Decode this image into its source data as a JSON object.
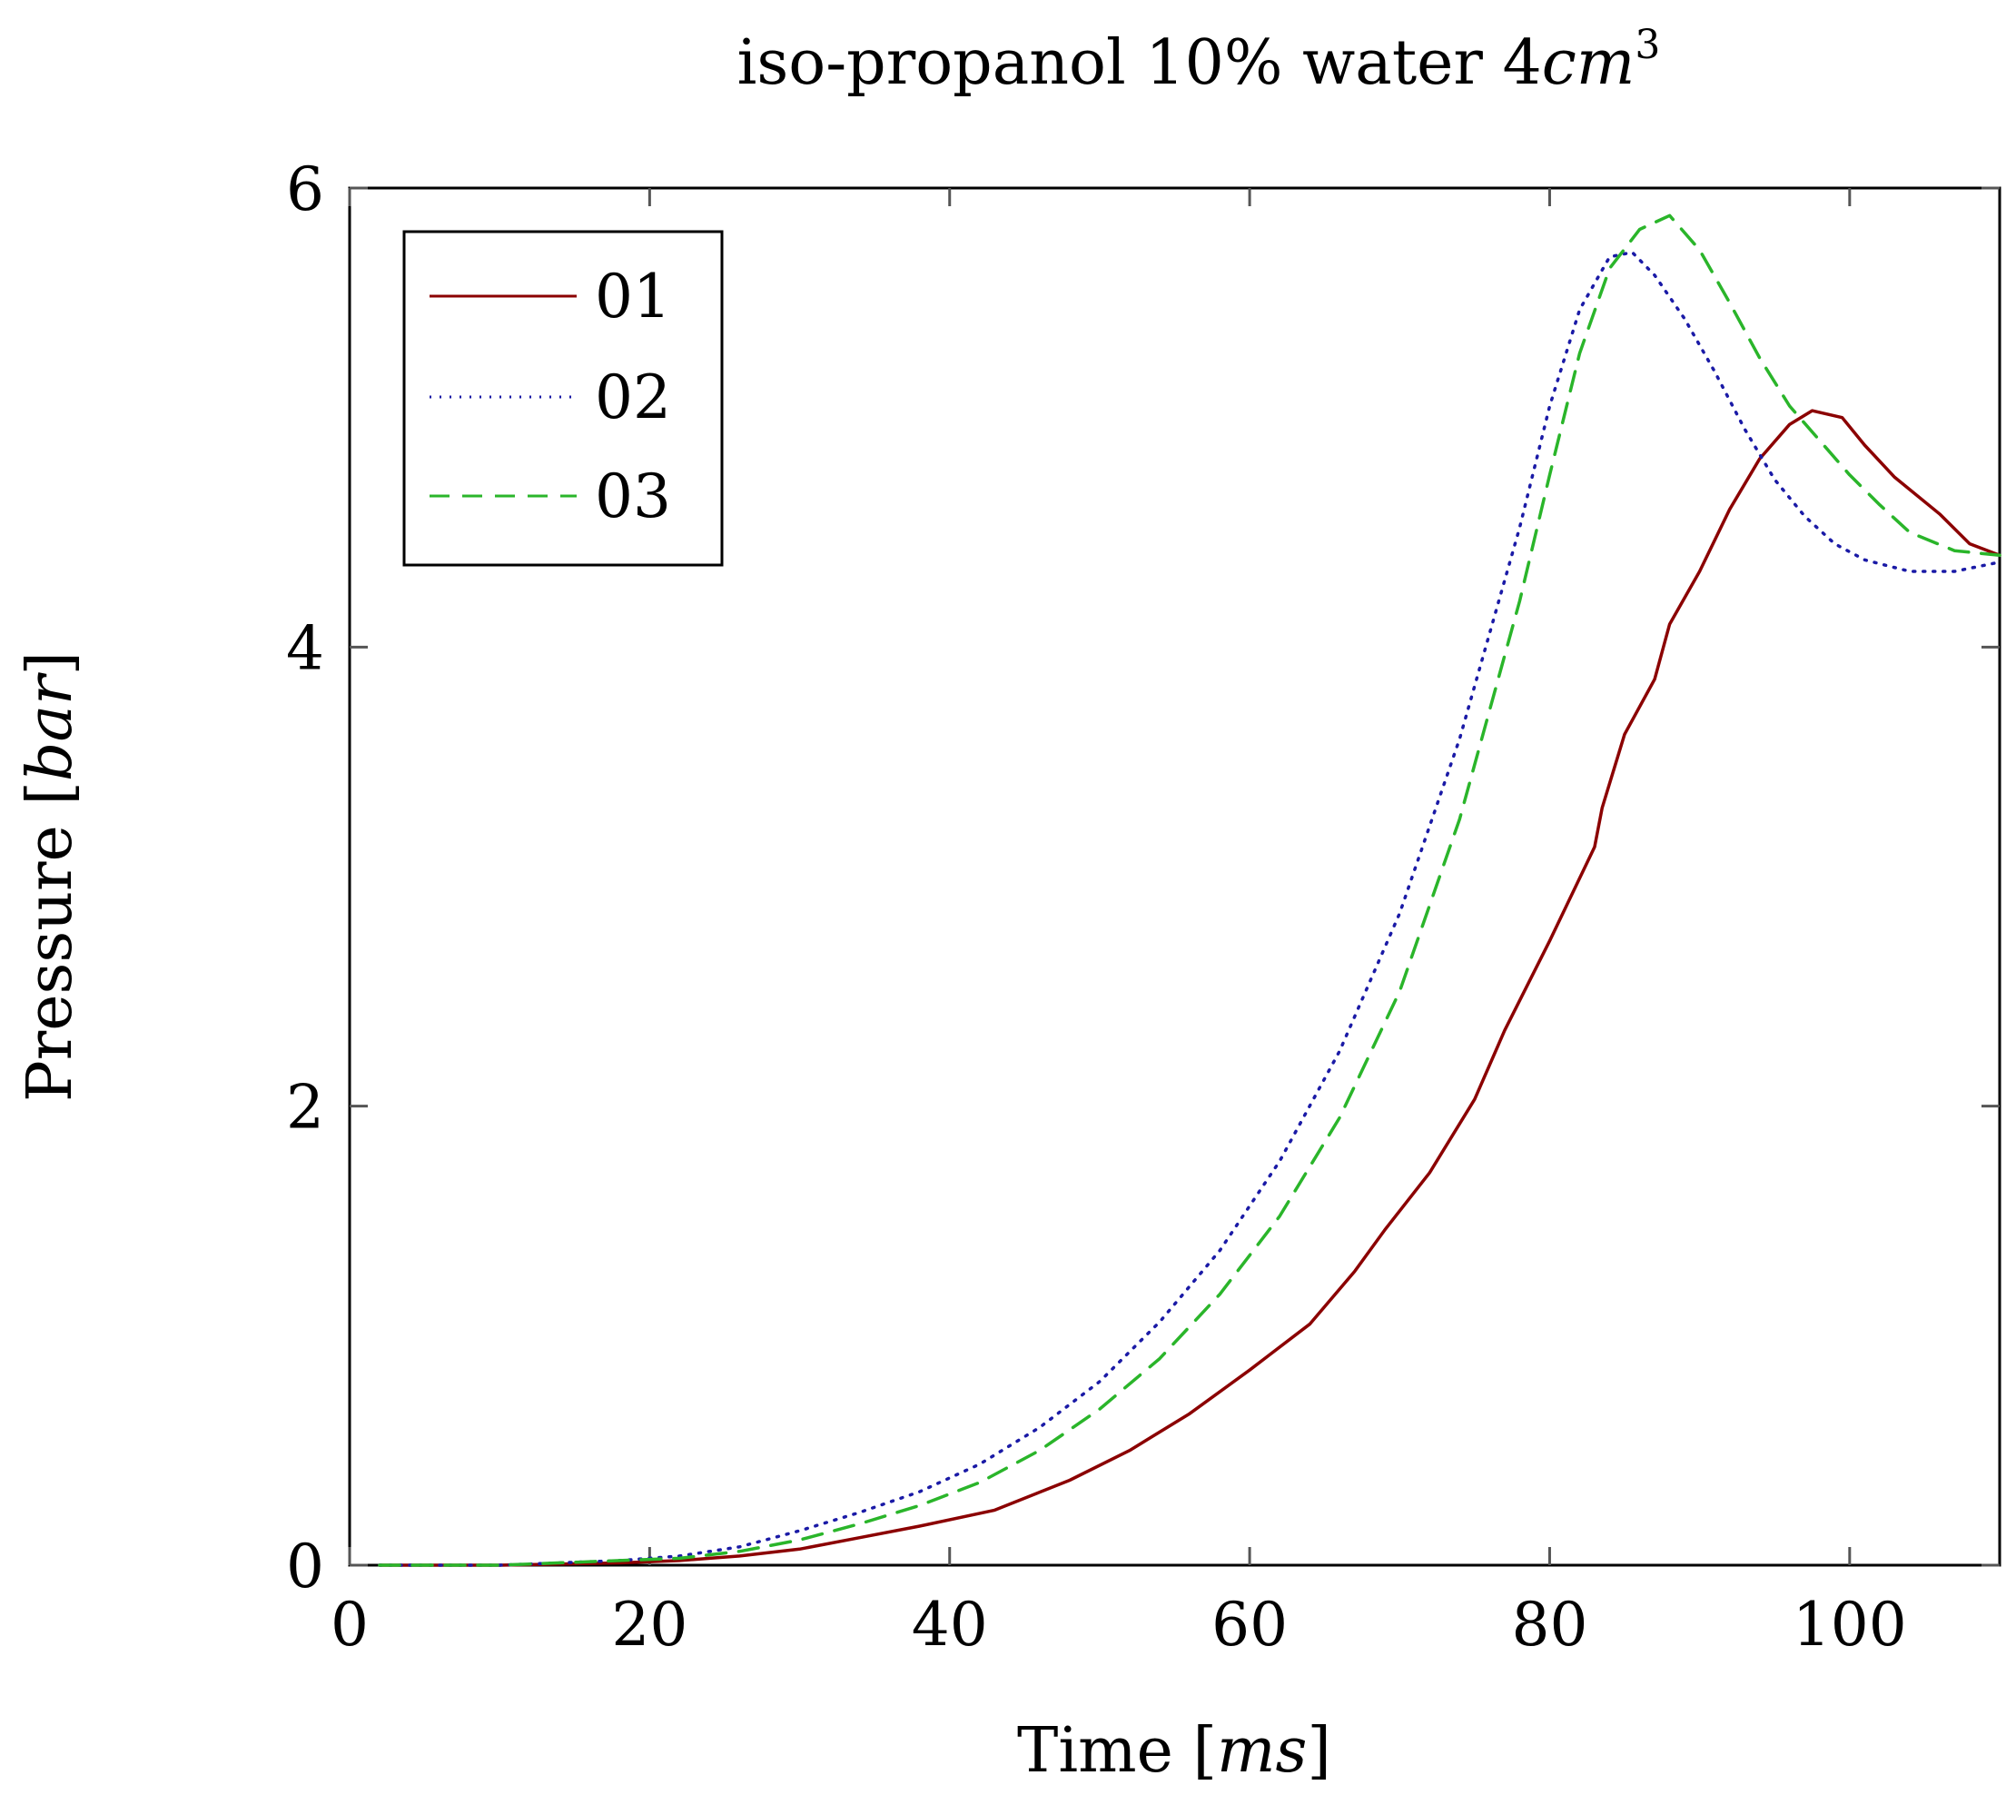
{
  "chart_data": {
    "type": "line",
    "title": {
      "text": "iso-propanol 10% water 4",
      "math": "cm",
      "superscript": "3"
    },
    "xlabel": {
      "text": "Time [",
      "math": "ms",
      "close": "]"
    },
    "ylabel": {
      "text": "Pressure [",
      "math": "bar",
      "close": "]"
    },
    "xlim": [
      0,
      110
    ],
    "ylim": [
      0,
      6
    ],
    "xticks": [
      0,
      20,
      40,
      60,
      80,
      100
    ],
    "yticks": [
      0,
      2,
      4,
      6
    ],
    "grid": false,
    "legend_position": "top-left",
    "series": [
      {
        "name": "01",
        "color": "#8b0000",
        "style": "solid",
        "x": [
          2,
          10,
          18,
          22,
          26,
          30,
          34,
          38,
          43,
          48,
          52,
          56,
          60,
          64,
          67,
          69,
          72,
          75,
          77,
          80,
          83,
          83.5,
          85,
          87,
          88,
          90,
          92,
          94,
          96,
          97.5,
          99.5,
          101,
          103,
          106,
          108,
          110
        ],
        "y": [
          0.0,
          0.0,
          0.01,
          0.02,
          0.04,
          0.07,
          0.12,
          0.17,
          0.24,
          0.37,
          0.5,
          0.66,
          0.85,
          1.05,
          1.28,
          1.46,
          1.71,
          2.03,
          2.33,
          2.72,
          3.13,
          3.3,
          3.62,
          3.86,
          4.1,
          4.33,
          4.6,
          4.82,
          4.97,
          5.03,
          5.0,
          4.88,
          4.74,
          4.58,
          4.45,
          4.4
        ]
      },
      {
        "name": "02",
        "color": "#1a1aa6",
        "style": "dotted",
        "x": [
          2,
          10,
          18,
          22,
          26,
          30,
          34,
          38,
          42,
          46,
          50,
          54,
          58,
          62,
          66,
          70,
          74,
          78,
          80,
          82,
          84,
          85.5,
          87,
          89,
          91,
          93,
          95,
          97,
          99,
          101,
          104,
          107,
          110
        ],
        "y": [
          0.0,
          0.0,
          0.02,
          0.04,
          0.08,
          0.15,
          0.23,
          0.32,
          0.44,
          0.6,
          0.8,
          1.06,
          1.37,
          1.76,
          2.24,
          2.84,
          3.6,
          4.52,
          5.05,
          5.47,
          5.7,
          5.72,
          5.62,
          5.43,
          5.2,
          4.95,
          4.73,
          4.57,
          4.45,
          4.38,
          4.33,
          4.33,
          4.37
        ]
      },
      {
        "name": "03",
        "color": "#2ab52a",
        "style": "dashed",
        "x": [
          2,
          10,
          18,
          22,
          26,
          30,
          34,
          38,
          42,
          46,
          50,
          54,
          58,
          62,
          66,
          70,
          74,
          78,
          80,
          82,
          84,
          86,
          88,
          90,
          92,
          94,
          96,
          98,
          100,
          102,
          104,
          107,
          110
        ],
        "y": [
          0.0,
          0.0,
          0.02,
          0.03,
          0.06,
          0.11,
          0.18,
          0.26,
          0.36,
          0.5,
          0.68,
          0.9,
          1.18,
          1.52,
          1.95,
          2.5,
          3.25,
          4.2,
          4.75,
          5.28,
          5.65,
          5.82,
          5.88,
          5.73,
          5.5,
          5.26,
          5.05,
          4.9,
          4.75,
          4.62,
          4.5,
          4.42,
          4.4
        ]
      }
    ]
  }
}
